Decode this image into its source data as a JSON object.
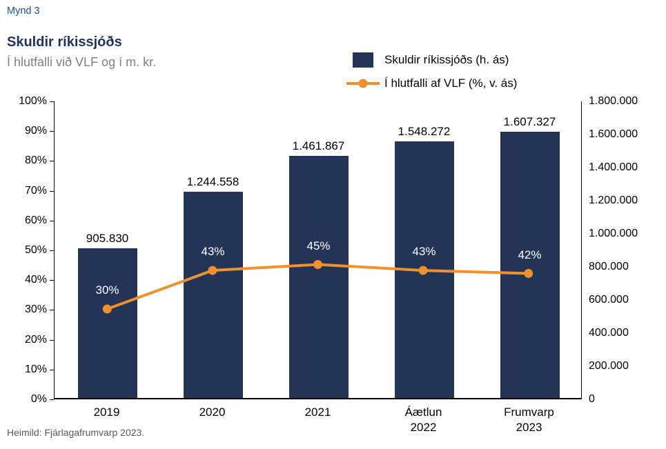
{
  "figure_label": "Mynd 3",
  "title": "Skuldir ríkissjóðs",
  "subtitle": "Í hlutfalli við VLF og í m. kr.",
  "source": "Heimild: Fjárlagafrumvarp 2023.",
  "colors": {
    "bar": "#243457",
    "line": "#F0912D",
    "title": "#1F3458",
    "figure_label": "#1F4E79",
    "subtitle": "#808080"
  },
  "legend": [
    {
      "label": "Skuldir ríkissjóðs (h. ás)",
      "type": "bar",
      "color": "#243457"
    },
    {
      "label": "Í hlutfalli af VLF (%, v. ás)",
      "type": "line",
      "color": "#F0912D"
    }
  ],
  "chart_data": {
    "type": "bar+line",
    "title": "Skuldir ríkissjóðs",
    "subtitle": "Í hlutfalli við VLF og í m. kr.",
    "categories": [
      "2019",
      "2020",
      "2021",
      "Áætlun\n2022",
      "Frumvarp\n2023"
    ],
    "series": [
      {
        "name": "Skuldir ríkissjóðs (h. ás)",
        "type": "bar",
        "axis": "right",
        "values": [
          905830,
          1244558,
          1461867,
          1548272,
          1607327
        ],
        "labels": [
          "905.830",
          "1.244.558",
          "1.461.867",
          "1.548.272",
          "1.607.327"
        ],
        "color": "#243457"
      },
      {
        "name": "Í hlutfalli af VLF (%, v. ás)",
        "type": "line",
        "axis": "left",
        "values": [
          30,
          43,
          45,
          43,
          42
        ],
        "labels": [
          "30%",
          "43%",
          "45%",
          "43%",
          "42%"
        ],
        "color": "#F0912D"
      }
    ],
    "left_axis": {
      "min": 0,
      "max": 100,
      "step": 10,
      "format": "percent",
      "ticks": [
        "0%",
        "10%",
        "20%",
        "30%",
        "40%",
        "50%",
        "60%",
        "70%",
        "80%",
        "90%",
        "100%"
      ]
    },
    "right_axis": {
      "min": 0,
      "max": 1800000,
      "step": 200000,
      "ticks": [
        "0",
        "200.000",
        "400.000",
        "600.000",
        "800.000",
        "1.000.000",
        "1.200.000",
        "1.400.000",
        "1.600.000",
        "1.800.000"
      ]
    },
    "grid": false,
    "legend_position": "top-right"
  }
}
